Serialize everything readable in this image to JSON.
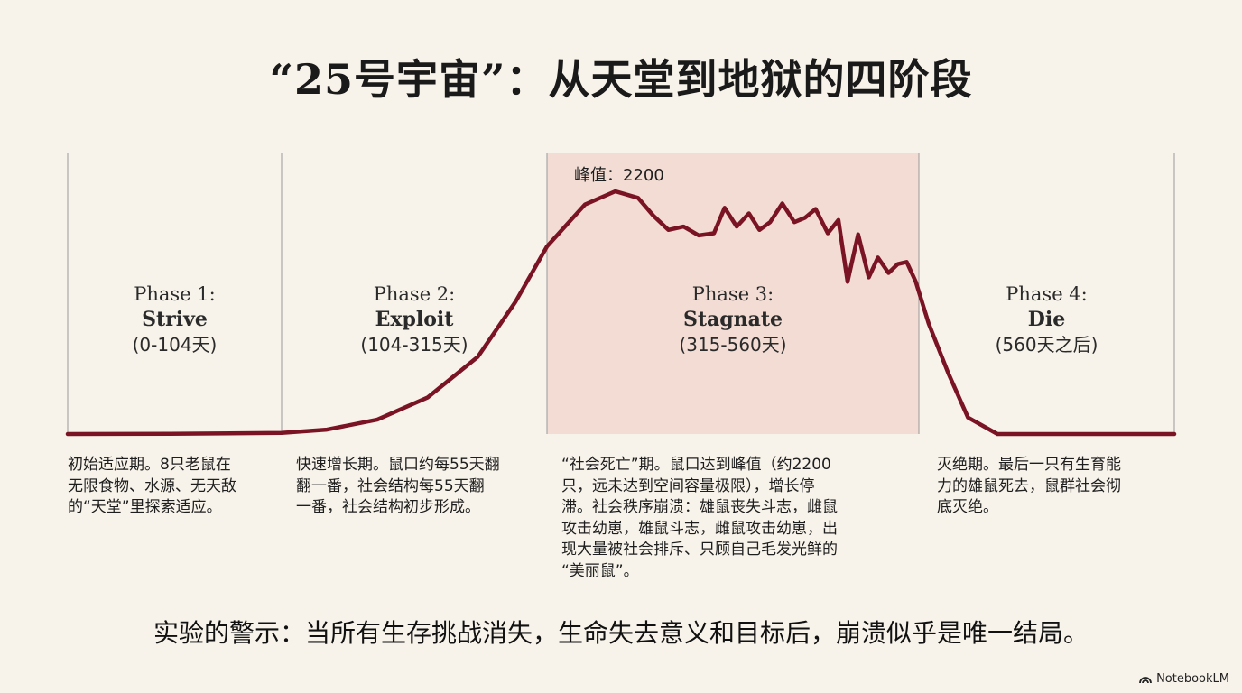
{
  "title": "“25号宇宙”：从天堂到地狱的四阶段",
  "chart_data": {
    "type": "line",
    "x_unit": "天",
    "phase_boundaries": [
      0,
      104,
      315,
      560
    ],
    "highlight_phase": 3,
    "colors": {
      "line": "#7a1424",
      "highlight": "#f2dcd4",
      "divider": "#9a9a9a"
    },
    "peak_label": "峰值：2200",
    "peak_value": 2200,
    "series": [
      {
        "x": [
          0,
          50,
          104,
          140,
          180,
          220,
          260,
          290,
          315,
          340,
          360,
          375,
          385,
          395,
          405,
          415,
          425,
          432,
          440,
          448,
          455,
          462,
          470,
          478,
          485,
          492,
          500,
          507,
          513,
          520,
          527,
          533,
          540,
          546,
          552,
          558,
          565,
          575,
          585,
          600,
          620,
          690
        ],
        "y": [
          0,
          2,
          10,
          40,
          130,
          330,
          700,
          1200,
          1700,
          2080,
          2200,
          2140,
          1980,
          1850,
          1880,
          1800,
          1820,
          2050,
          1880,
          2000,
          1850,
          1920,
          2090,
          1920,
          1960,
          2040,
          1820,
          1940,
          1380,
          1810,
          1420,
          1600,
          1460,
          1540,
          1560,
          1380,
          1000,
          550,
          150,
          0,
          0,
          0
        ]
      }
    ],
    "phases": [
      {
        "label": "Phase 1:",
        "name": "Strive",
        "range": "(0-104天)",
        "description": [
          "初始适应期。8只老鼠在",
          "无限食物、水源、无天敌",
          "的“天堂”里探索适应。"
        ]
      },
      {
        "label": "Phase 2:",
        "name": "Exploit",
        "range": "(104-315天)",
        "description": [
          "快速增长期。鼠口约每55天翻",
          "翻一番，社会结构每55天翻",
          "一番，社会结构初步形成。"
        ]
      },
      {
        "label": "Phase 3:",
        "name": "Stagnate",
        "range": "(315-560天)",
        "description": [
          "“社会死亡”期。鼠口达到峰值（约2200",
          "只，远未达到空间容量极限），增长停",
          "滞。社会秩序崩溃：雄鼠丧失斗志，雌鼠",
          "攻击幼崽，雄鼠斗志，雌鼠攻击幼崽，出",
          "现大量被社会排斥、只顾自己毛发光鲜的",
          "“美丽鼠”。"
        ]
      },
      {
        "label": "Phase 4:",
        "name": "Die",
        "range": "(560天之后)",
        "description": [
          "灭绝期。最后一只有生育能",
          "力的雄鼠死去，鼠群社会彻",
          "底灭绝。"
        ]
      }
    ]
  },
  "conclusion": "实验的警示：当所有生存挑战消失，生命失去意义和目标后，崩溃似乎是唯一结局。",
  "brand": {
    "name": "NotebookLM",
    "icon": "notebooklm-logo-icon"
  }
}
